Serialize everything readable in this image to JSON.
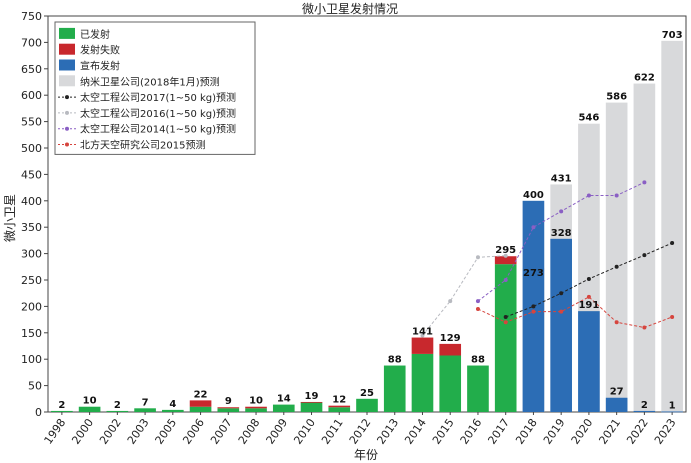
{
  "chart_data": {
    "type": "bar",
    "title": "微小卫星发射情况",
    "xlabel": "年份",
    "ylabel": "微小卫星",
    "ylim": [
      0,
      750
    ],
    "yticks": [
      0,
      50,
      100,
      150,
      200,
      250,
      300,
      350,
      400,
      450,
      500,
      550,
      600,
      650,
      700,
      750
    ],
    "categories": [
      "1998",
      "2000",
      "2002",
      "2003",
      "2005",
      "2006",
      "2007",
      "2008",
      "2009",
      "2010",
      "2011",
      "2012",
      "2013",
      "2014",
      "2015",
      "2016",
      "2017",
      "2018",
      "2019",
      "2020",
      "2021",
      "2022",
      "2023"
    ],
    "grid": false,
    "legend_position": "top-left",
    "series": [
      {
        "name": "已发射",
        "kind": "bar",
        "color": "#22ad4b",
        "values": [
          2,
          10,
          2,
          7,
          4,
          10,
          7,
          7,
          14,
          18,
          9,
          25,
          88,
          110,
          107,
          88,
          280,
          0,
          0,
          0,
          0,
          0,
          0
        ]
      },
      {
        "name": "发射失败",
        "kind": "bar",
        "color": "#c8282d",
        "values": [
          0,
          0,
          0,
          0,
          0,
          12,
          2,
          3,
          0,
          1,
          3,
          0,
          0,
          31,
          22,
          0,
          15,
          0,
          0,
          0,
          0,
          0,
          0
        ]
      },
      {
        "name": "宣布发射",
        "kind": "bar",
        "color": "#2c6db5",
        "values": [
          0,
          0,
          0,
          0,
          0,
          0,
          0,
          0,
          0,
          0,
          0,
          0,
          0,
          0,
          0,
          0,
          0,
          400,
          328,
          191,
          27,
          2,
          1
        ]
      },
      {
        "name": "纳米卫星公司(2018年1月)预测",
        "kind": "bar",
        "color": "#d8d9db",
        "values": [
          null,
          null,
          null,
          null,
          null,
          null,
          null,
          null,
          null,
          null,
          null,
          null,
          null,
          null,
          null,
          null,
          null,
          273,
          431,
          546,
          586,
          622,
          703
        ]
      },
      {
        "name": "太空工程公司2017(1~50 kg)预测",
        "kind": "line",
        "color": "#222222",
        "values": [
          null,
          null,
          null,
          null,
          null,
          null,
          null,
          null,
          null,
          null,
          null,
          null,
          null,
          null,
          null,
          null,
          180,
          200,
          225,
          252,
          275,
          297,
          320
        ]
      },
      {
        "name": "太空工程公司2016(1~50 kg)预测",
        "kind": "line",
        "color": "#b8bac0",
        "values": [
          null,
          null,
          null,
          null,
          null,
          null,
          null,
          null,
          null,
          null,
          null,
          null,
          null,
          145,
          210,
          293,
          296,
          null,
          null,
          null,
          null,
          null,
          null
        ]
      },
      {
        "name": "太空工程公司2014(1~50 kg)预测",
        "kind": "line",
        "color": "#8a5fc4",
        "values": [
          null,
          null,
          null,
          null,
          null,
          null,
          null,
          null,
          null,
          null,
          null,
          null,
          null,
          null,
          null,
          210,
          250,
          350,
          380,
          410,
          410,
          435,
          null
        ]
      },
      {
        "name": "北方天空研究公司2015预测",
        "kind": "line",
        "color": "#d6453e",
        "values": [
          null,
          null,
          null,
          null,
          null,
          null,
          null,
          null,
          null,
          null,
          null,
          null,
          null,
          null,
          null,
          195,
          170,
          190,
          190,
          218,
          170,
          160,
          180
        ]
      }
    ],
    "data_labels": [
      {
        "category": "1998",
        "text": "2"
      },
      {
        "category": "2000",
        "text": "10"
      },
      {
        "category": "2002",
        "text": "2"
      },
      {
        "category": "2003",
        "text": "7"
      },
      {
        "category": "2005",
        "text": "4"
      },
      {
        "category": "2006",
        "text": "22"
      },
      {
        "category": "2007",
        "text": "9"
      },
      {
        "category": "2008",
        "text": "10"
      },
      {
        "category": "2009",
        "text": "14"
      },
      {
        "category": "2010",
        "text": "19"
      },
      {
        "category": "2011",
        "text": "12"
      },
      {
        "category": "2012",
        "text": "25"
      },
      {
        "category": "2013",
        "text": "88"
      },
      {
        "category": "2014",
        "text": "141"
      },
      {
        "category": "2015",
        "text": "129"
      },
      {
        "category": "2016",
        "text": "88"
      },
      {
        "category": "2017",
        "text": "295"
      },
      {
        "category": "2018",
        "text": "400"
      },
      {
        "category": "2018",
        "text": "273"
      },
      {
        "category": "2019",
        "text": "431"
      },
      {
        "category": "2019",
        "text": "328"
      },
      {
        "category": "2020",
        "text": "546"
      },
      {
        "category": "2020",
        "text": "191"
      },
      {
        "category": "2021",
        "text": "586"
      },
      {
        "category": "2021",
        "text": "27"
      },
      {
        "category": "2022",
        "text": "622"
      },
      {
        "category": "2022",
        "text": "2"
      },
      {
        "category": "2023",
        "text": "703"
      },
      {
        "category": "2023",
        "text": "1"
      }
    ]
  }
}
